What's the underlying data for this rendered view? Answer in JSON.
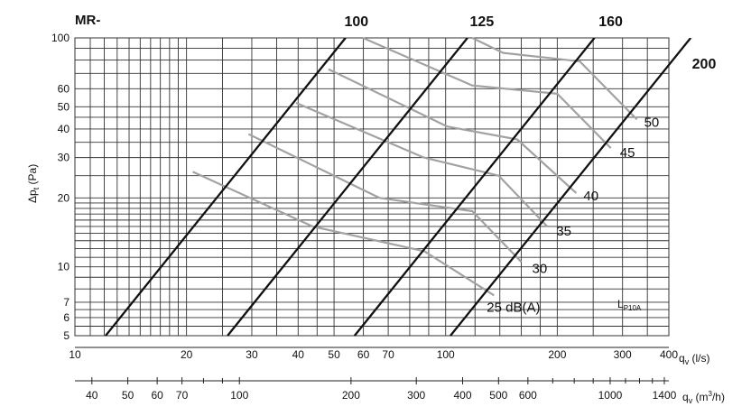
{
  "chart_data": {
    "type": "line",
    "title": "MR-",
    "ylabel": "Δp_t (Pa)",
    "xlabel": "q_v (l/s)",
    "x2label": "q_v (m³/h)",
    "x_scale": "log",
    "y_scale": "log",
    "xlim": [
      10,
      400
    ],
    "ylim": [
      5,
      100
    ],
    "x2lim": [
      36,
      1440
    ],
    "grid": true,
    "x_ticks": [
      10,
      20,
      30,
      40,
      50,
      60,
      70,
      100,
      200,
      300,
      400
    ],
    "y_ticks": [
      5,
      6,
      7,
      10,
      20,
      30,
      40,
      50,
      60,
      100
    ],
    "x2_ticks": [
      40,
      50,
      60,
      70,
      100,
      200,
      300,
      400,
      500,
      600,
      1000,
      1400
    ],
    "series": [
      {
        "name": "100",
        "x": [
          12.1,
          53.7
        ],
        "y": [
          5,
          100
        ]
      },
      {
        "name": "125",
        "x": [
          25.8,
          114.5
        ],
        "y": [
          5,
          100
        ]
      },
      {
        "name": "160",
        "x": [
          56.8,
          252
        ],
        "y": [
          5,
          100
        ]
      },
      {
        "name": "200",
        "x": [
          103,
          458
        ],
        "y": [
          5,
          100
        ]
      }
    ],
    "db_lines": [
      {
        "name": "25 dB(A)",
        "x": [
          20.8,
          43.8,
          87.6,
          135
        ],
        "y": [
          26,
          15,
          11.7,
          7.5
        ]
      },
      {
        "name": "30",
        "x": [
          29.4,
          66.3,
          118,
          160
        ],
        "y": [
          38,
          20,
          17.5,
          10.5
        ]
      },
      {
        "name": "35",
        "x": [
          39.5,
          87.4,
          139,
          188
        ],
        "y": [
          52,
          30,
          25,
          15
        ]
      },
      {
        "name": "40",
        "x": [
          48.3,
          101,
          156,
          225
        ],
        "y": [
          73,
          41,
          36,
          21
        ]
      },
      {
        "name": "45",
        "x": [
          59.8,
          118,
          200,
          279
        ],
        "y": [
          100,
          62,
          57,
          33
        ]
      },
      {
        "name": "50",
        "x": [
          118,
          143,
          230,
          328
        ],
        "y": [
          100,
          86,
          79,
          44
        ]
      }
    ],
    "annotations": [
      "L",
      "P10A"
    ]
  },
  "colors": {
    "curve": "#111111",
    "db_line": "#a2a2a2",
    "grid": "#333333",
    "background": "#ffffff"
  }
}
